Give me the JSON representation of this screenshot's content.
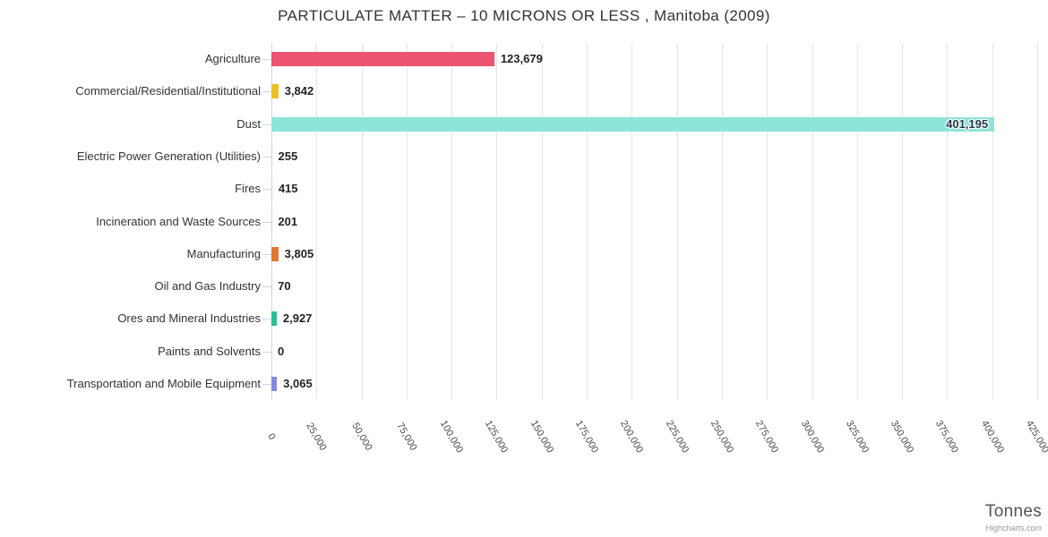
{
  "header": {
    "title": "PARTICULATE MATTER – 10 MICRONS OR LESS , Manitoba (2009)"
  },
  "footer": {
    "axis_title": "Tonnes",
    "credit": "Highcharts.com"
  },
  "colors": {
    "grid_line": "#e6e6e6",
    "axis_line": "#ccd6eb",
    "category_tick": "#ccd6eb",
    "title_text": "#333333",
    "value_label_text": "#242424",
    "tick_label_text": "#4a4a4a"
  },
  "chart_data": {
    "type": "bar",
    "orientation": "horizontal",
    "title": "PARTICULATE MATTER – 10 MICRONS OR LESS , Manitoba (2009)",
    "axis_title": "Tonnes",
    "grid": true,
    "legend": "none",
    "xlim": [
      0,
      425000
    ],
    "tick_interval": 25000,
    "categories": [
      "Agriculture",
      "Commercial/Residential/Institutional",
      "Dust",
      "Electric Power Generation (Utilities)",
      "Fires",
      "Incineration and Waste Sources",
      "Manufacturing",
      "Oil and Gas Industry",
      "Ores and Mineral Industries",
      "Paints and Solvents",
      "Transportation and Mobile Equipment"
    ],
    "values": [
      123679,
      3842,
      401195,
      255,
      415,
      201,
      3805,
      70,
      2927,
      0,
      3065
    ],
    "value_labels": [
      "123,679",
      "3,842",
      "401,195",
      "255",
      "415",
      "201",
      "3,805",
      "70",
      "2,927",
      "0",
      "3,065"
    ],
    "bar_colors": [
      "#EC5471",
      "#EDBE27",
      "#8FE4D9",
      "#cccccc",
      "#cccccc",
      "#cccccc",
      "#E2782F",
      "#cccccc",
      "#2EBD95",
      "#cccccc",
      "#8487DF"
    ],
    "label_inside": [
      false,
      false,
      true,
      false,
      false,
      false,
      false,
      false,
      false,
      false,
      false
    ],
    "x_ticks": [
      0,
      25000,
      50000,
      75000,
      100000,
      125000,
      150000,
      175000,
      200000,
      225000,
      250000,
      275000,
      300000,
      325000,
      350000,
      375000,
      400000,
      425000
    ],
    "x_tick_labels": [
      "0",
      "25,000",
      "50,000",
      "75,000",
      "100,000",
      "125,000",
      "150,000",
      "175,000",
      "200,000",
      "225,000",
      "250,000",
      "275,000",
      "300,000",
      "325,000",
      "350,000",
      "375,000",
      "400,000",
      "425,000"
    ]
  }
}
